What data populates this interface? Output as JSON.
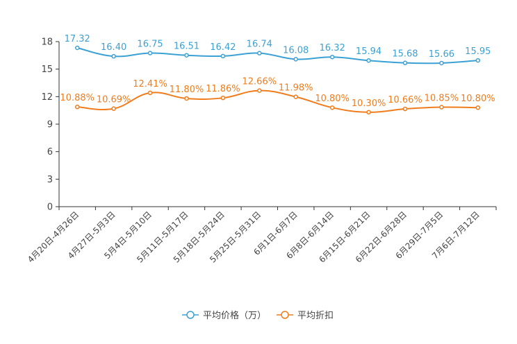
{
  "chart_data": {
    "type": "line",
    "title": "",
    "xlabel": "",
    "ylabel": "",
    "ylim": [
      0,
      18
    ],
    "yticks": [
      0,
      3,
      6,
      9,
      12,
      15,
      18
    ],
    "categories": [
      "4月20日-4月26日",
      "4月27日-5月3日",
      "5月4日-5月10日",
      "5月11日-5月17日",
      "5月18日-5月24日",
      "5月25日-5月31日",
      "6月1日-6月7日",
      "6月8日-6月14日",
      "6月15日-6月21日",
      "6月22日-6月28日",
      "6月29日-7月5日",
      "7月6日-7月12日"
    ],
    "series": [
      {
        "name": "平均价格（万）",
        "color": "#3ba0d3",
        "values": [
          17.32,
          16.4,
          16.75,
          16.51,
          16.42,
          16.74,
          16.08,
          16.32,
          15.94,
          15.68,
          15.66,
          15.95
        ],
        "labels": [
          "17.32",
          "16.40",
          "16.75",
          "16.51",
          "16.42",
          "16.74",
          "16.08",
          "16.32",
          "15.94",
          "15.68",
          "15.66",
          "15.95"
        ]
      },
      {
        "name": "平均折扣",
        "color": "#f07c1c",
        "values": [
          10.88,
          10.69,
          12.41,
          11.8,
          11.86,
          12.66,
          11.98,
          10.8,
          10.3,
          10.66,
          10.85,
          10.8
        ],
        "labels": [
          "10.88%",
          "10.69%",
          "12.41%",
          "11.80%",
          "11.86%",
          "12.66%",
          "11.98%",
          "10.80%",
          "10.30%",
          "10.66%",
          "10.85%",
          "10.80%"
        ]
      }
    ],
    "legend_position": "bottom"
  }
}
